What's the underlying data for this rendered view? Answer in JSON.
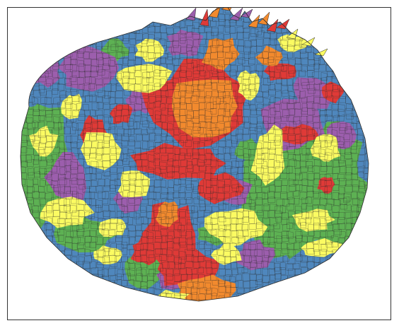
{
  "map": {
    "type": "voronoi-region-coloring",
    "palette": {
      "blue": "#4f87bd",
      "green": "#5db153",
      "yellow": "#fbfb62",
      "purple": "#9c5ead",
      "red": "#df3a37",
      "orange": "#f28a2e",
      "cell_border": "#2a2a2a",
      "frame": "#333333"
    },
    "legend": false,
    "axes": false
  }
}
